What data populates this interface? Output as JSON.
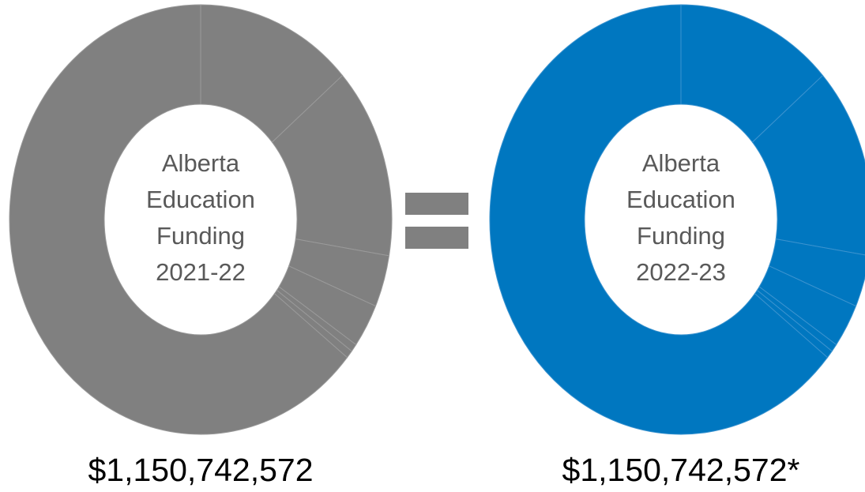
{
  "chart_data": [
    {
      "type": "pie",
      "donut": true,
      "color": "#808080",
      "separator_color": "#9a9a9a",
      "center_label": [
        "Alberta",
        "Education",
        "Funding",
        "2021-22"
      ],
      "total": "$1,150,742,572",
      "values": [
        13.3,
        14.4,
        3.9,
        3.3,
        0.6,
        0.6,
        63.9
      ]
    },
    {
      "type": "pie",
      "donut": true,
      "color": "#0077c0",
      "separator_color": "#3b93cf",
      "center_label": [
        "Alberta",
        "Education",
        "Funding",
        "2022-23"
      ],
      "total": "$1,150,742,572*",
      "values": [
        13.3,
        14.4,
        3.9,
        3.3,
        0.6,
        0.6,
        63.9
      ]
    }
  ]
}
